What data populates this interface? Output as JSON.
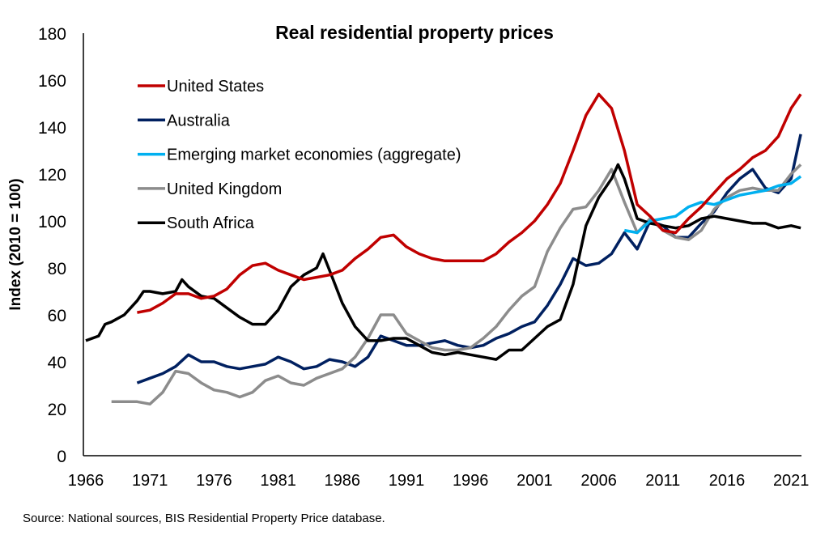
{
  "chart_data": {
    "type": "line",
    "title": "Real residential property prices",
    "ylabel": "Index (2010 = 100)",
    "xlabel": "",
    "ylim": [
      0,
      180
    ],
    "xlim": [
      1966,
      2022
    ],
    "yticks": [
      "0",
      "20",
      "40",
      "60",
      "80",
      "100",
      "120",
      "140",
      "160",
      "180"
    ],
    "xticks": [
      "1966",
      "1971",
      "1976",
      "1981",
      "1986",
      "1991",
      "1996",
      "2001",
      "2006",
      "2011",
      "2016",
      "2021"
    ],
    "grid": false,
    "legend_position": "top-left",
    "source": "Source: National sources, BIS Residential Property Price database.",
    "series": [
      {
        "name": "United States",
        "color": "#c00000",
        "x": [
          1970,
          1971,
          1972,
          1973,
          1974,
          1975,
          1976,
          1977,
          1978,
          1979,
          1980,
          1981,
          1982,
          1983,
          1984,
          1985,
          1986,
          1987,
          1988,
          1989,
          1990,
          1991,
          1992,
          1993,
          1994,
          1995,
          1996,
          1997,
          1998,
          1999,
          2000,
          2001,
          2002,
          2003,
          2004,
          2005,
          2006,
          2007,
          2008,
          2009,
          2010,
          2011,
          2012,
          2013,
          2014,
          2015,
          2016,
          2017,
          2018,
          2019,
          2020,
          2021,
          2021.75
        ],
        "values": [
          61,
          62,
          65,
          69,
          69,
          67,
          68,
          71,
          77,
          81,
          82,
          79,
          77,
          75,
          76,
          77,
          79,
          84,
          88,
          93,
          94,
          89,
          86,
          84,
          83,
          83,
          83,
          83,
          86,
          91,
          95,
          100,
          107,
          116,
          130,
          145,
          154,
          148,
          130,
          107,
          102,
          96,
          95,
          101,
          106,
          112,
          118,
          122,
          127,
          130,
          136,
          148,
          154
        ]
      },
      {
        "name": "Australia",
        "color": "#002060",
        "x": [
          1970,
          1971,
          1972,
          1973,
          1974,
          1975,
          1976,
          1977,
          1978,
          1979,
          1980,
          1981,
          1982,
          1983,
          1984,
          1985,
          1986,
          1987,
          1988,
          1989,
          1990,
          1991,
          1992,
          1993,
          1994,
          1995,
          1996,
          1997,
          1998,
          1999,
          2000,
          2001,
          2002,
          2003,
          2004,
          2005,
          2006,
          2007,
          2008,
          2009,
          2010,
          2011,
          2012,
          2013,
          2014,
          2015,
          2016,
          2017,
          2018,
          2019,
          2020,
          2021,
          2021.75
        ],
        "values": [
          31,
          33,
          35,
          38,
          43,
          40,
          40,
          38,
          37,
          38,
          39,
          42,
          40,
          37,
          38,
          41,
          40,
          38,
          42,
          51,
          49,
          47,
          47,
          48,
          49,
          47,
          46,
          47,
          50,
          52,
          55,
          57,
          64,
          73,
          84,
          81,
          82,
          86,
          95,
          88,
          100,
          98,
          93,
          93,
          99,
          104,
          112,
          118,
          122,
          114,
          112,
          118,
          137
        ]
      },
      {
        "name": "Emerging market economies (aggregate)",
        "color": "#00b0f0",
        "x": [
          2008,
          2009,
          2010,
          2011,
          2012,
          2013,
          2014,
          2015,
          2016,
          2017,
          2018,
          2019,
          2020,
          2021,
          2021.75
        ],
        "values": [
          96,
          95,
          100,
          101,
          102,
          106,
          108,
          107,
          109,
          111,
          112,
          113,
          115,
          116,
          119
        ]
      },
      {
        "name": "United Kingdom",
        "color": "#8c8c8c",
        "x": [
          1968,
          1969,
          1970,
          1971,
          1972,
          1973,
          1974,
          1975,
          1976,
          1977,
          1978,
          1979,
          1980,
          1981,
          1982,
          1983,
          1984,
          1985,
          1986,
          1987,
          1988,
          1989,
          1990,
          1991,
          1992,
          1993,
          1994,
          1995,
          1996,
          1997,
          1998,
          1999,
          2000,
          2001,
          2002,
          2003,
          2004,
          2005,
          2006,
          2007,
          2008,
          2009,
          2010,
          2011,
          2012,
          2013,
          2014,
          2015,
          2016,
          2017,
          2018,
          2019,
          2020,
          2021,
          2021.75
        ],
        "values": [
          23,
          23,
          23,
          22,
          27,
          36,
          35,
          31,
          28,
          27,
          25,
          27,
          32,
          34,
          31,
          30,
          33,
          35,
          37,
          42,
          50,
          60,
          60,
          52,
          49,
          46,
          45,
          45,
          46,
          50,
          55,
          62,
          68,
          72,
          87,
          97,
          105,
          106,
          113,
          122,
          108,
          95,
          101,
          96,
          93,
          92,
          96,
          105,
          110,
          113,
          114,
          113,
          113,
          120,
          124
        ]
      },
      {
        "name": "South Africa",
        "color": "#000000",
        "x": [
          1966,
          1967,
          1967.5,
          1968,
          1969,
          1970,
          1970.5,
          1971,
          1972,
          1973,
          1973.5,
          1974,
          1975,
          1976,
          1977,
          1978,
          1979,
          1980,
          1981,
          1982,
          1983,
          1984,
          1984.5,
          1985,
          1986,
          1987,
          1988,
          1989,
          1990,
          1991,
          1992,
          1993,
          1994,
          1995,
          1996,
          1997,
          1998,
          1999,
          2000,
          2001,
          2002,
          2003,
          2004,
          2005,
          2006,
          2007,
          2007.5,
          2008,
          2009,
          2010,
          2011,
          2012,
          2013,
          2014,
          2015,
          2016,
          2017,
          2018,
          2019,
          2020,
          2021,
          2021.75
        ],
        "values": [
          49,
          51,
          56,
          57,
          60,
          66,
          70,
          70,
          69,
          70,
          75,
          72,
          68,
          67,
          63,
          59,
          56,
          56,
          62,
          72,
          77,
          80,
          86,
          79,
          65,
          55,
          49,
          49,
          50,
          50,
          47,
          44,
          43,
          44,
          43,
          42,
          41,
          45,
          45,
          50,
          55,
          58,
          73,
          98,
          110,
          118,
          124,
          118,
          101,
          99,
          98,
          97,
          98,
          101,
          102,
          101,
          100,
          99,
          99,
          97,
          98,
          97
        ]
      }
    ]
  }
}
